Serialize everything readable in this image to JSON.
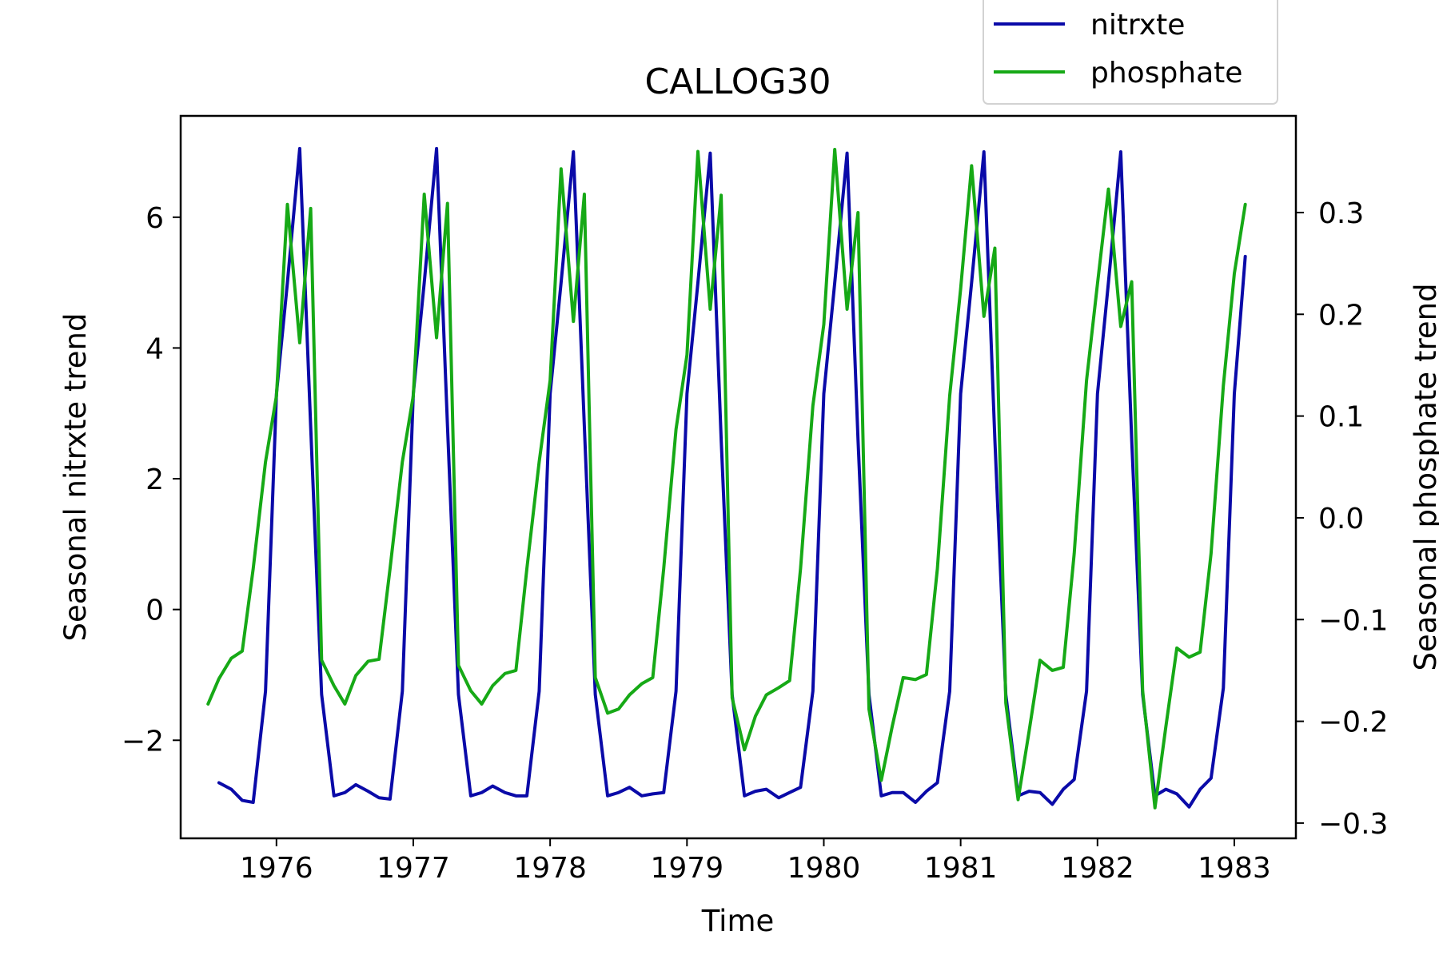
{
  "chart_data": {
    "type": "line",
    "title": "CALLOG30",
    "xlabel": "Time",
    "ylabel_left": "Seasonal nitrxte trend",
    "ylabel_right": "Seasonal phosphate trend",
    "xlim": [
      1975.3,
      1983.45
    ],
    "ylim_left": [
      -3.5,
      7.55
    ],
    "ylim_right": [
      -0.315,
      0.395
    ],
    "x_ticks": [
      1976,
      1977,
      1978,
      1979,
      1980,
      1981,
      1982,
      1983
    ],
    "x_tick_labels": [
      "1976",
      "1977",
      "1978",
      "1979",
      "1980",
      "1981",
      "1982",
      "1983"
    ],
    "y_left_ticks": [
      -2,
      0,
      2,
      4,
      6
    ],
    "y_left_tick_labels": [
      "−2",
      "0",
      "2",
      "4",
      "6"
    ],
    "y_right_ticks": [
      -0.3,
      -0.2,
      -0.1,
      0.0,
      0.1,
      0.2,
      0.3
    ],
    "y_right_tick_labels": [
      "−0.3",
      "−0.2",
      "−0.1",
      "0.0",
      "0.1",
      "0.2",
      "0.3"
    ],
    "legend": {
      "placement": "top-right, above plot",
      "entries": [
        "nitrxte",
        "phosphate"
      ]
    },
    "grid": false,
    "series": [
      {
        "name": "nitrxte",
        "axis": "left",
        "color": "#0a0aa8",
        "x": [
          1975.58,
          1975.67,
          1975.75,
          1975.83,
          1975.92,
          1976.0,
          1976.08,
          1976.17,
          1976.25,
          1976.33,
          1976.42,
          1976.5,
          1976.58,
          1976.67,
          1976.75,
          1976.83,
          1976.92,
          1977.0,
          1977.08,
          1977.17,
          1977.25,
          1977.33,
          1977.42,
          1977.5,
          1977.58,
          1977.67,
          1977.75,
          1977.83,
          1977.92,
          1978.0,
          1978.08,
          1978.17,
          1978.25,
          1978.33,
          1978.42,
          1978.5,
          1978.58,
          1978.67,
          1978.75,
          1978.83,
          1978.92,
          1979.0,
          1979.08,
          1979.17,
          1979.25,
          1979.33,
          1979.42,
          1979.5,
          1979.58,
          1979.67,
          1979.75,
          1979.83,
          1979.92,
          1980.0,
          1980.08,
          1980.17,
          1980.25,
          1980.33,
          1980.42,
          1980.5,
          1980.58,
          1980.67,
          1980.75,
          1980.83,
          1980.92,
          1981.0,
          1981.08,
          1981.17,
          1981.25,
          1981.33,
          1981.42,
          1981.5,
          1981.58,
          1981.67,
          1981.75,
          1981.83,
          1981.92,
          1982.0,
          1982.08,
          1982.17,
          1982.25,
          1982.33,
          1982.42,
          1982.5,
          1982.58,
          1982.67,
          1982.75,
          1982.83,
          1982.92,
          1983.0,
          1983.08
        ],
        "values": [
          -2.65,
          -2.75,
          -2.92,
          -2.95,
          -1.25,
          3.3,
          5.0,
          7.05,
          2.8,
          -1.3,
          -2.85,
          -2.8,
          -2.68,
          -2.78,
          -2.88,
          -2.9,
          -1.25,
          3.3,
          5.0,
          7.05,
          2.8,
          -1.3,
          -2.85,
          -2.8,
          -2.7,
          -2.8,
          -2.85,
          -2.85,
          -1.25,
          3.3,
          5.0,
          7.0,
          2.8,
          -1.3,
          -2.85,
          -2.8,
          -2.72,
          -2.85,
          -2.82,
          -2.8,
          -1.25,
          3.3,
          5.0,
          6.98,
          2.6,
          -1.3,
          -2.85,
          -2.78,
          -2.75,
          -2.88,
          -2.8,
          -2.72,
          -1.25,
          3.3,
          5.0,
          6.98,
          2.6,
          -1.3,
          -2.85,
          -2.8,
          -2.8,
          -2.95,
          -2.78,
          -2.65,
          -1.25,
          3.3,
          5.0,
          7.0,
          2.6,
          -1.3,
          -2.85,
          -2.78,
          -2.8,
          -2.98,
          -2.75,
          -2.6,
          -1.25,
          3.3,
          5.0,
          7.0,
          2.6,
          -1.3,
          -2.85,
          -2.75,
          -2.82,
          -3.02,
          -2.75,
          -2.58,
          -1.2,
          3.3,
          5.4
        ]
      },
      {
        "name": "phosphate",
        "axis": "right",
        "color": "#16a916",
        "x": [
          1975.5,
          1975.58,
          1975.67,
          1975.75,
          1975.83,
          1975.92,
          1976.0,
          1976.08,
          1976.17,
          1976.25,
          1976.33,
          1976.42,
          1976.5,
          1976.58,
          1976.67,
          1976.75,
          1976.83,
          1976.92,
          1977.0,
          1977.08,
          1977.17,
          1977.25,
          1977.33,
          1977.42,
          1977.5,
          1977.58,
          1977.67,
          1977.75,
          1977.83,
          1977.92,
          1978.0,
          1978.08,
          1978.17,
          1978.25,
          1978.33,
          1978.42,
          1978.5,
          1978.58,
          1978.67,
          1978.75,
          1978.83,
          1978.92,
          1979.0,
          1979.08,
          1979.17,
          1979.25,
          1979.33,
          1979.42,
          1979.5,
          1979.58,
          1979.67,
          1979.75,
          1979.83,
          1979.92,
          1980.0,
          1980.08,
          1980.17,
          1980.25,
          1980.33,
          1980.42,
          1980.5,
          1980.58,
          1980.67,
          1980.75,
          1980.83,
          1980.92,
          1981.0,
          1981.08,
          1981.17,
          1981.25,
          1981.33,
          1981.42,
          1981.5,
          1981.58,
          1981.67,
          1981.75,
          1981.83,
          1981.92,
          1982.0,
          1982.08,
          1982.17,
          1982.25,
          1982.33,
          1982.42,
          1982.5,
          1982.58,
          1982.67,
          1982.75,
          1982.83,
          1982.92,
          1983.0,
          1983.08
        ],
        "values": [
          -0.183,
          -0.158,
          -0.138,
          -0.131,
          -0.05,
          0.055,
          0.12,
          0.308,
          0.172,
          0.304,
          -0.14,
          -0.165,
          -0.183,
          -0.155,
          -0.141,
          -0.139,
          -0.05,
          0.055,
          0.12,
          0.318,
          0.177,
          0.309,
          -0.145,
          -0.17,
          -0.183,
          -0.165,
          -0.153,
          -0.15,
          -0.05,
          0.055,
          0.135,
          0.343,
          0.193,
          0.318,
          -0.157,
          -0.192,
          -0.188,
          -0.174,
          -0.163,
          -0.157,
          -0.05,
          0.087,
          0.16,
          0.36,
          0.205,
          0.317,
          -0.177,
          -0.228,
          -0.195,
          -0.174,
          -0.167,
          -0.16,
          -0.05,
          0.11,
          0.19,
          0.362,
          0.205,
          0.3,
          -0.188,
          -0.258,
          -0.205,
          -0.157,
          -0.159,
          -0.154,
          -0.05,
          0.12,
          0.225,
          0.346,
          0.198,
          0.265,
          -0.182,
          -0.277,
          -0.21,
          -0.14,
          -0.15,
          -0.147,
          -0.035,
          0.135,
          0.23,
          0.323,
          0.188,
          0.232,
          -0.17,
          -0.285,
          -0.205,
          -0.128,
          -0.137,
          -0.132,
          -0.035,
          0.13,
          0.24,
          0.308
        ]
      }
    ]
  }
}
